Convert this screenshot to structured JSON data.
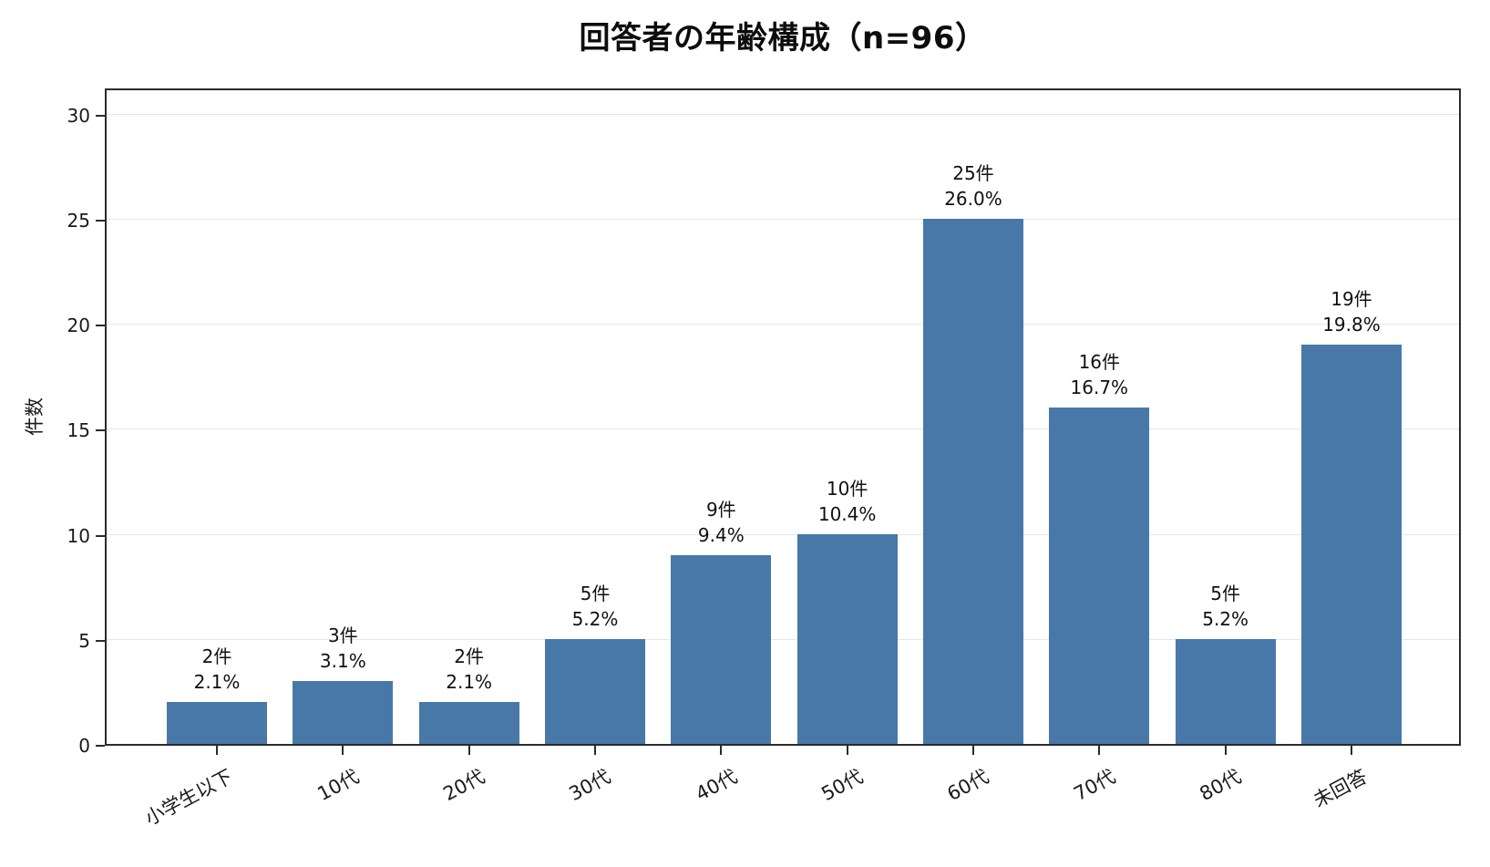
{
  "title": "回答者の年齢構成（n=96）",
  "chart_data": {
    "type": "bar",
    "title": "回答者の年齢構成（n=96）",
    "xlabel": "",
    "ylabel": "件数",
    "categories": [
      "小学生以下",
      "10代",
      "20代",
      "30代",
      "40代",
      "50代",
      "60代",
      "70代",
      "80代",
      "未回答"
    ],
    "values": [
      2,
      3,
      2,
      5,
      9,
      10,
      25,
      16,
      5,
      19
    ],
    "count_labels": [
      "2件",
      "3件",
      "2件",
      "5件",
      "9件",
      "10件",
      "25件",
      "16件",
      "5件",
      "19件"
    ],
    "percent_labels": [
      "2.1%",
      "3.1%",
      "2.1%",
      "5.2%",
      "9.4%",
      "10.4%",
      "26.0%",
      "16.7%",
      "5.2%",
      "19.8%"
    ],
    "yticks": [
      0,
      5,
      10,
      15,
      20,
      25,
      30
    ],
    "ylim": [
      0,
      31.3
    ],
    "grid": true,
    "legend": "none",
    "bar_color": "#4878a8"
  },
  "colors": {
    "bar": "#4878a8",
    "gridline": "#e7e7e7",
    "spine": "#2b2b2b",
    "text": "#1a1a1a",
    "background": "#ffffff"
  }
}
